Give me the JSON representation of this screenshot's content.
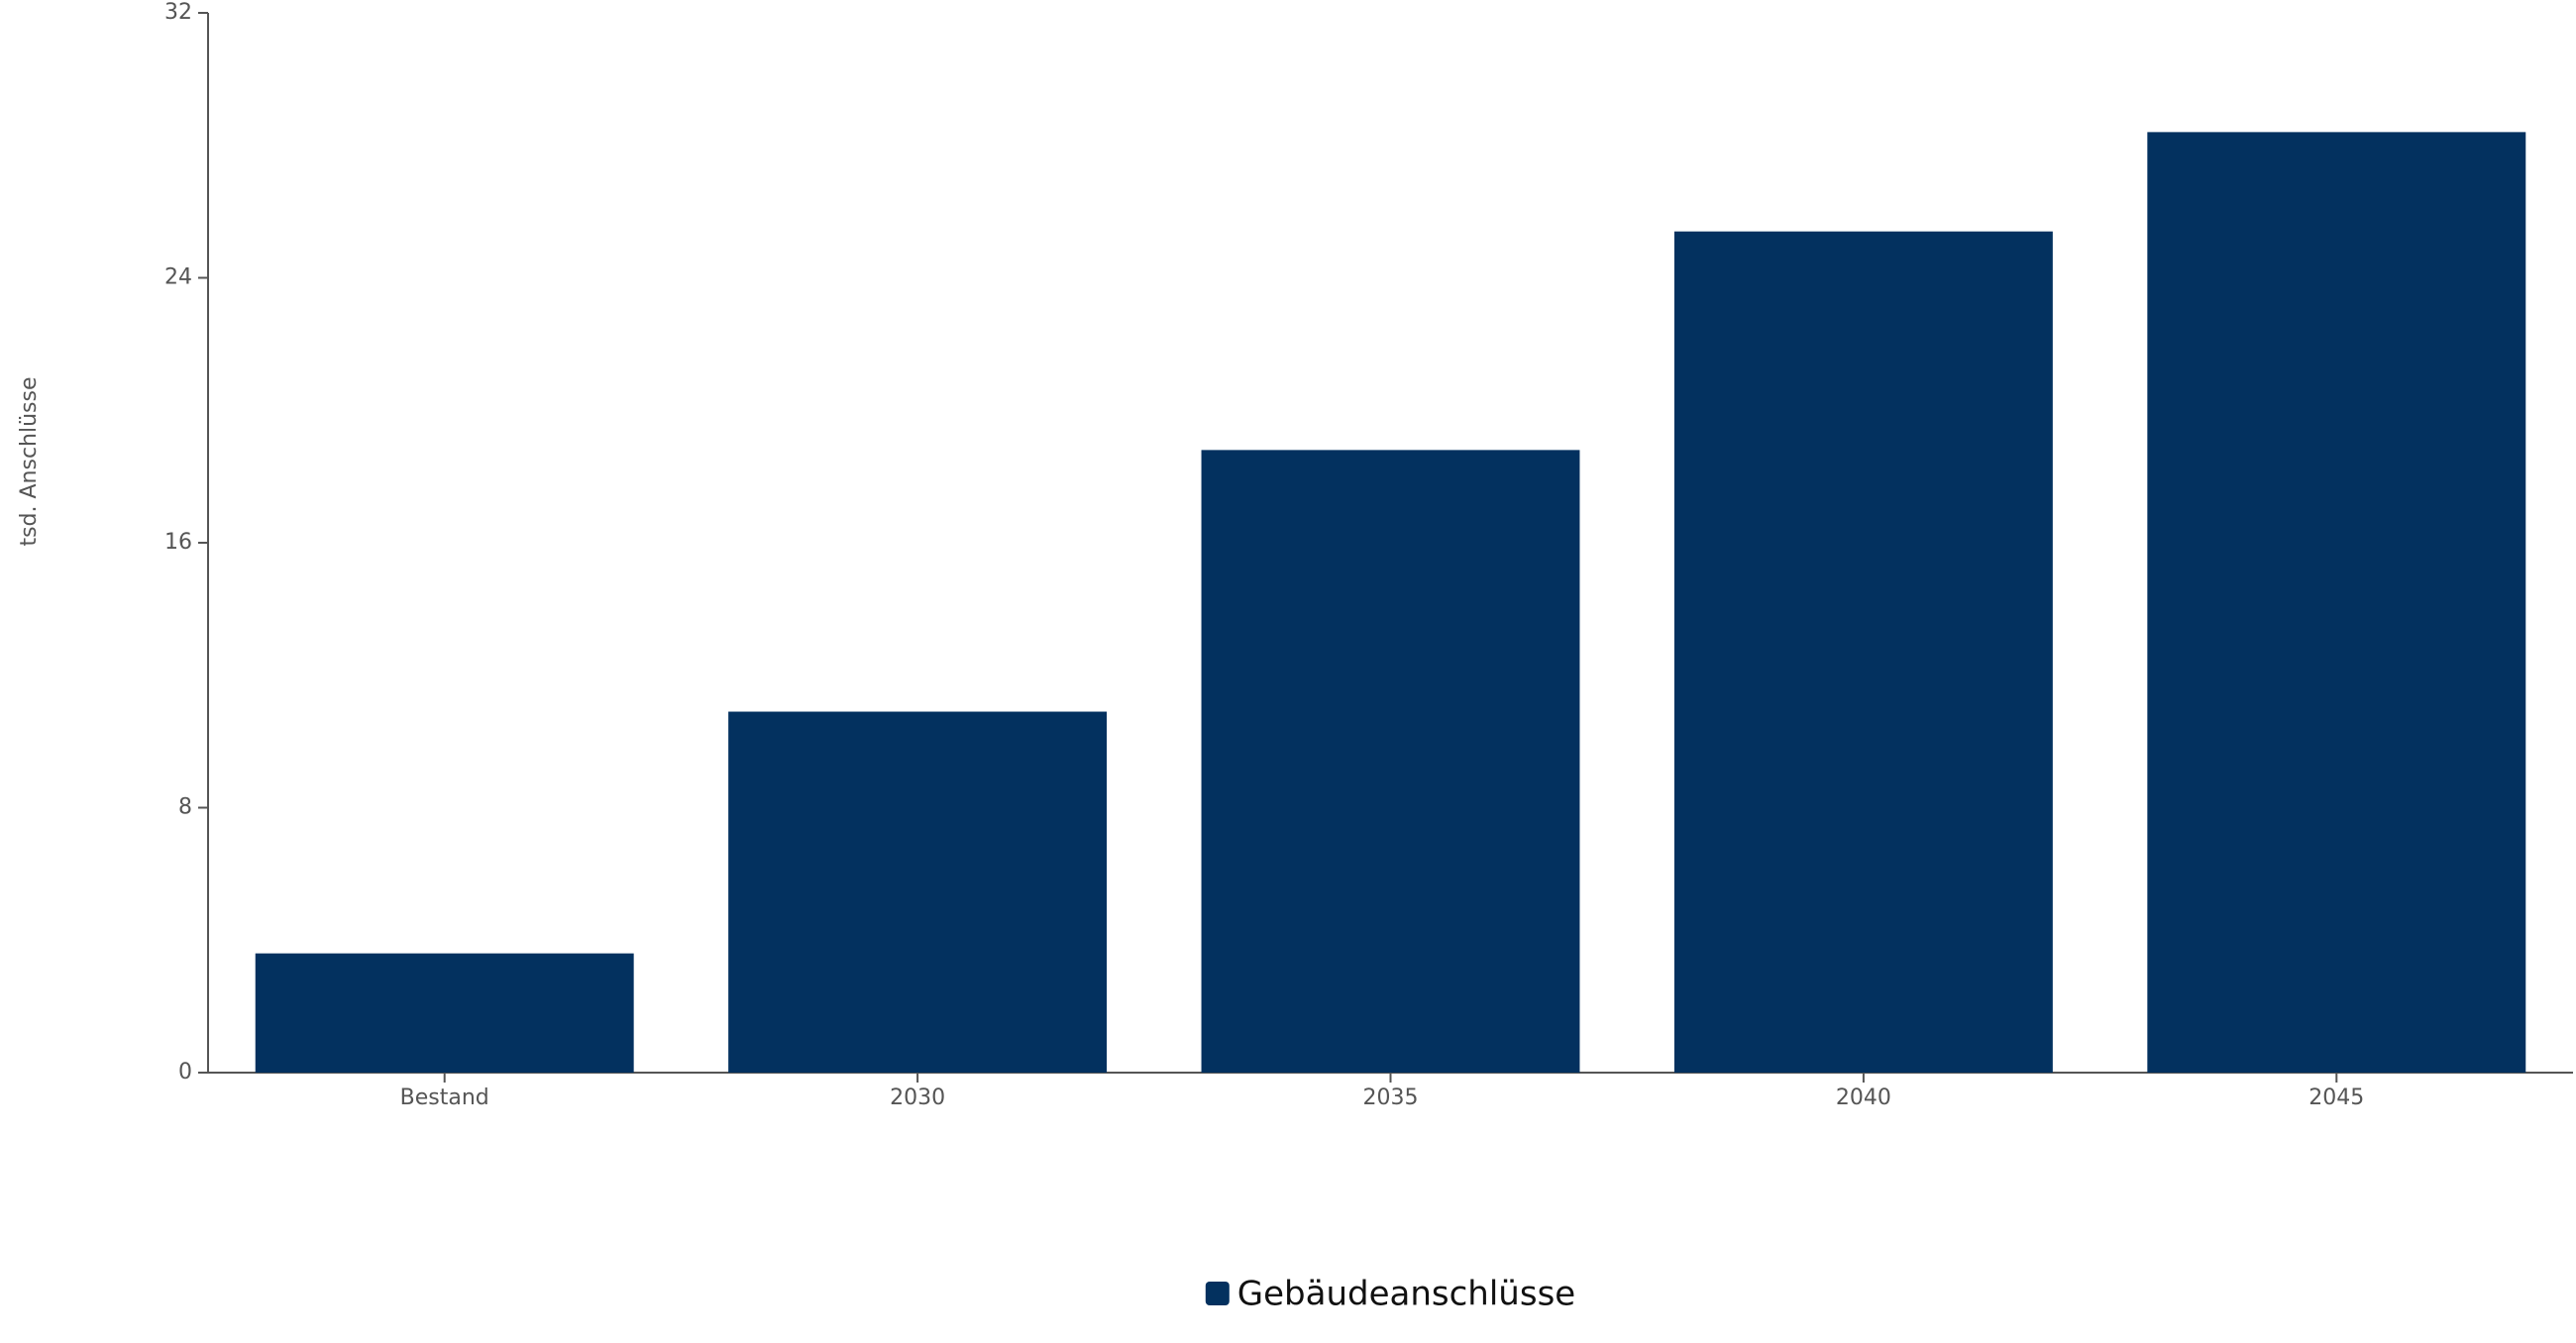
{
  "chart_data": {
    "type": "bar",
    "y_label": "tsd. Anschlüsse",
    "categories": [
      "Bestand",
      "2030",
      "2035",
      "2040",
      "2045"
    ],
    "series": [
      {
        "name": "Gebäudeanschlüsse",
        "color": "#03315f",
        "values": [
          3.6,
          10.9,
          18.8,
          25.4,
          28.4
        ]
      }
    ],
    "ylim": [
      0,
      32
    ],
    "yticks": [
      0,
      8,
      16,
      24,
      32
    ],
    "legend": "bottom"
  }
}
